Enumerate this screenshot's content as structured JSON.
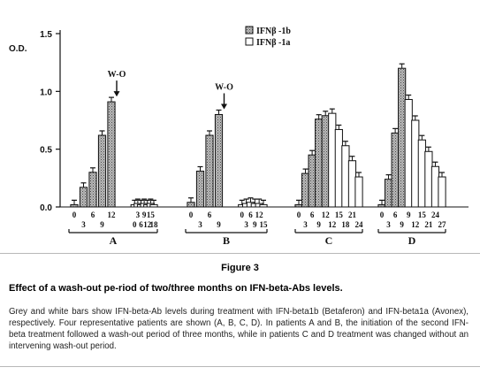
{
  "figure": {
    "label": "Figure 3",
    "title": "Effect of a wash-out pe-riod of two/three months on IFN-beta-Abs levels.",
    "caption": "Grey and white bars show IFN-beta-Ab levels during treatment with IFN-beta1b (Betaferon) and IFN-beta1a (Avonex), respectively. Four representative patients are shown (A, B, C, D). In patients A and B, the initiation of the second IFN-beta treatment followed a wash-out period of three months, while in patients C and D treatment was changed without an intervening wash-out period."
  },
  "chart_data": {
    "type": "bar",
    "ylabel": "O.D.",
    "ylim": [
      0,
      1.5
    ],
    "yticks": [
      "0.0",
      "0.5",
      "1.0",
      "1.5"
    ],
    "legend": [
      {
        "label": "IFNβ -1b",
        "pattern": "stippled-grey"
      },
      {
        "label": "IFNβ -1a",
        "pattern": "white"
      }
    ],
    "legend_position": "top-right",
    "annotation": "W-O",
    "colors": {
      "ifnb1b": "#a8a8a8",
      "ifnb1a": "#ffffff",
      "ink": "#111111"
    },
    "groups": [
      {
        "name": "A",
        "ifnb1b_months": [
          "0",
          "3",
          "6",
          "9",
          "12"
        ],
        "ifnb1b_values": [
          0.02,
          0.17,
          0.3,
          0.62,
          0.91
        ],
        "washout": true,
        "ifnb1a_months": [
          "0",
          "3",
          "6",
          "9",
          "12",
          "15",
          "18"
        ],
        "ifnb1a_values": [
          0.02,
          0.03,
          0.02,
          0.03,
          0.02,
          0.03,
          0.02
        ]
      },
      {
        "name": "B",
        "ifnb1b_months": [
          "0",
          "3",
          "6",
          "9"
        ],
        "ifnb1b_values": [
          0.04,
          0.31,
          0.62,
          0.8
        ],
        "washout": true,
        "ifnb1a_months": [
          "0",
          "3",
          "6",
          "9",
          "12",
          "15"
        ],
        "ifnb1a_values": [
          0.02,
          0.03,
          0.04,
          0.03,
          0.03,
          0.02
        ]
      },
      {
        "name": "C",
        "ifnb1b_months": [
          "0",
          "3",
          "6",
          "9",
          "12"
        ],
        "ifnb1b_values": [
          0.02,
          0.29,
          0.45,
          0.76,
          0.79
        ],
        "washout": false,
        "ifnb1a_months": [
          "12",
          "15",
          "18",
          "21",
          "24"
        ],
        "ifnb1a_values": [
          0.81,
          0.67,
          0.53,
          0.4,
          0.26
        ]
      },
      {
        "name": "D",
        "ifnb1b_months": [
          "0",
          "3",
          "6",
          "9"
        ],
        "ifnb1b_values": [
          0.02,
          0.24,
          0.64,
          1.2
        ],
        "washout": false,
        "ifnb1a_months": [
          "9",
          "12",
          "15",
          "21",
          "24",
          "27"
        ],
        "ifnb1a_values": [
          0.93,
          0.75,
          0.58,
          0.48,
          0.35,
          0.26
        ]
      }
    ]
  }
}
